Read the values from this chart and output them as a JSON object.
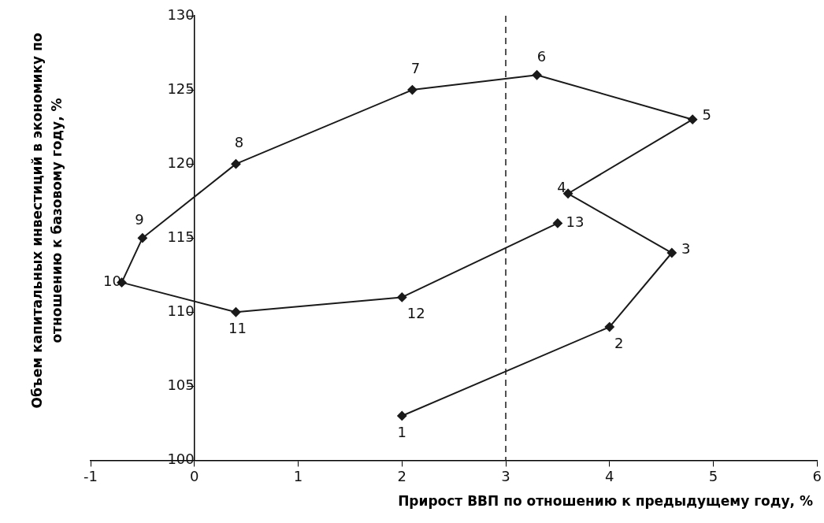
{
  "chart_data": {
    "type": "line",
    "xlabel": "Прирост ВВП по отношению к предыдущему году, %",
    "ylabel": "Объем капитальных инвестиций в экономику по отношению к базовому году, %",
    "x": [
      2,
      4,
      4.6,
      3.6,
      4.8,
      3.3,
      2.1,
      0.4,
      -0.5,
      -0.7,
      0.4,
      2,
      3.5
    ],
    "values": [
      103,
      109,
      114,
      118,
      123,
      126,
      125,
      120,
      115,
      112,
      110,
      111,
      116
    ],
    "annotations": [
      {
        "text": "1",
        "x": 2,
        "y": 103
      },
      {
        "text": "2",
        "x": 4,
        "y": 109
      },
      {
        "text": "3",
        "x": 4.6,
        "y": 114
      },
      {
        "text": "4",
        "x": 3.6,
        "y": 118
      },
      {
        "text": "5",
        "x": 4.8,
        "y": 123
      },
      {
        "text": "6",
        "x": 3.3,
        "y": 126
      },
      {
        "text": "7",
        "x": 2.1,
        "y": 125
      },
      {
        "text": "8",
        "x": 0.4,
        "y": 120
      },
      {
        "text": "9",
        "x": -0.5,
        "y": 115
      },
      {
        "text": "10",
        "x": -0.7,
        "y": 112
      },
      {
        "text": "11",
        "x": 0.4,
        "y": 110
      },
      {
        "text": "12",
        "x": 2,
        "y": 111
      },
      {
        "text": "13",
        "x": 3.5,
        "y": 116
      }
    ],
    "color": "#1a1a1a",
    "marker": "diamond",
    "line_style": "solid",
    "xlim": [
      -1,
      6
    ],
    "xticks": [
      -1,
      0,
      1,
      2,
      3,
      4,
      5,
      6
    ],
    "ylim": [
      100,
      130
    ],
    "yticks": [
      100,
      105,
      110,
      115,
      120,
      125,
      130
    ],
    "ref_lines": [
      {
        "axis": "x",
        "value": 3,
        "color": "#1a1a1a",
        "line_style": "dashed"
      }
    ],
    "grid": false,
    "legend": false
  }
}
